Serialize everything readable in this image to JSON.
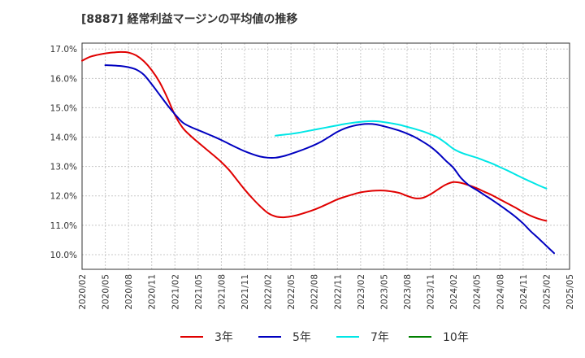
{
  "chart_data": {
    "type": "line",
    "title": "[8887]  経常利益マージンの平均値の推移",
    "xlabel": "",
    "ylabel": "",
    "ylim": [
      9.5,
      17.2
    ],
    "y_ticks": [
      "10.0%",
      "11.0%",
      "12.0%",
      "13.0%",
      "14.0%",
      "15.0%",
      "16.0%",
      "17.0%"
    ],
    "y_tick_values": [
      10,
      11,
      12,
      13,
      14,
      15,
      16,
      17
    ],
    "x_ticks": [
      "2020/02",
      "2020/05",
      "2020/08",
      "2020/11",
      "2021/02",
      "2021/05",
      "2021/08",
      "2021/11",
      "2022/02",
      "2022/05",
      "2022/08",
      "2022/11",
      "2023/02",
      "2023/05",
      "2023/08",
      "2023/11",
      "2024/02",
      "2024/05",
      "2024/08",
      "2024/11",
      "2025/02",
      "2025/05"
    ],
    "grid": true,
    "legend_position": "bottom",
    "series": [
      {
        "name": "3年",
        "color": "#e00000",
        "points": [
          [
            "2020/02",
            16.6
          ],
          [
            "2020/03",
            16.73
          ],
          [
            "2020/04",
            16.8
          ],
          [
            "2020/05",
            16.85
          ],
          [
            "2020/06",
            16.88
          ],
          [
            "2020/07",
            16.9
          ],
          [
            "2020/08",
            16.88
          ],
          [
            "2020/09",
            16.78
          ],
          [
            "2020/10",
            16.58
          ],
          [
            "2020/11",
            16.28
          ],
          [
            "2020/12",
            15.88
          ],
          [
            "2021/01",
            15.35
          ],
          [
            "2021/02",
            14.75
          ],
          [
            "2021/03",
            14.32
          ],
          [
            "2021/04",
            14.05
          ],
          [
            "2021/05",
            13.82
          ],
          [
            "2021/06",
            13.6
          ],
          [
            "2021/07",
            13.38
          ],
          [
            "2021/08",
            13.15
          ],
          [
            "2021/09",
            12.88
          ],
          [
            "2021/10",
            12.55
          ],
          [
            "2021/11",
            12.22
          ],
          [
            "2021/12",
            11.92
          ],
          [
            "2022/01",
            11.65
          ],
          [
            "2022/02",
            11.42
          ],
          [
            "2022/03",
            11.3
          ],
          [
            "2022/04",
            11.27
          ],
          [
            "2022/05",
            11.3
          ],
          [
            "2022/06",
            11.36
          ],
          [
            "2022/07",
            11.44
          ],
          [
            "2022/08",
            11.53
          ],
          [
            "2022/09",
            11.64
          ],
          [
            "2022/10",
            11.76
          ],
          [
            "2022/11",
            11.88
          ],
          [
            "2022/12",
            11.97
          ],
          [
            "2023/01",
            12.05
          ],
          [
            "2023/02",
            12.12
          ],
          [
            "2023/03",
            12.16
          ],
          [
            "2023/04",
            12.18
          ],
          [
            "2023/05",
            12.18
          ],
          [
            "2023/06",
            12.15
          ],
          [
            "2023/07",
            12.1
          ],
          [
            "2023/08",
            12.0
          ],
          [
            "2023/09",
            11.92
          ],
          [
            "2023/10",
            11.93
          ],
          [
            "2023/11",
            12.05
          ],
          [
            "2023/12",
            12.22
          ],
          [
            "2024/01",
            12.38
          ],
          [
            "2024/02",
            12.47
          ],
          [
            "2024/03",
            12.44
          ],
          [
            "2024/04",
            12.36
          ],
          [
            "2024/05",
            12.26
          ],
          [
            "2024/06",
            12.14
          ],
          [
            "2024/07",
            12.02
          ],
          [
            "2024/08",
            11.88
          ],
          [
            "2024/09",
            11.74
          ],
          [
            "2024/10",
            11.6
          ],
          [
            "2024/11",
            11.45
          ],
          [
            "2024/12",
            11.32
          ],
          [
            "2025/01",
            11.22
          ],
          [
            "2025/02",
            11.15
          ]
        ]
      },
      {
        "name": "5年",
        "color": "#0000c0",
        "points": [
          [
            "2020/05",
            16.45
          ],
          [
            "2020/06",
            16.44
          ],
          [
            "2020/07",
            16.42
          ],
          [
            "2020/08",
            16.38
          ],
          [
            "2020/09",
            16.3
          ],
          [
            "2020/10",
            16.12
          ],
          [
            "2020/11",
            15.8
          ],
          [
            "2020/12",
            15.45
          ],
          [
            "2021/01",
            15.1
          ],
          [
            "2021/02",
            14.78
          ],
          [
            "2021/03",
            14.5
          ],
          [
            "2021/04",
            14.35
          ],
          [
            "2021/05",
            14.24
          ],
          [
            "2021/06",
            14.13
          ],
          [
            "2021/07",
            14.02
          ],
          [
            "2021/08",
            13.9
          ],
          [
            "2021/09",
            13.77
          ],
          [
            "2021/10",
            13.64
          ],
          [
            "2021/11",
            13.52
          ],
          [
            "2021/12",
            13.42
          ],
          [
            "2022/01",
            13.34
          ],
          [
            "2022/02",
            13.3
          ],
          [
            "2022/03",
            13.3
          ],
          [
            "2022/04",
            13.35
          ],
          [
            "2022/05",
            13.43
          ],
          [
            "2022/06",
            13.52
          ],
          [
            "2022/07",
            13.62
          ],
          [
            "2022/08",
            13.73
          ],
          [
            "2022/09",
            13.86
          ],
          [
            "2022/10",
            14.02
          ],
          [
            "2022/11",
            14.18
          ],
          [
            "2022/12",
            14.3
          ],
          [
            "2023/01",
            14.38
          ],
          [
            "2023/02",
            14.43
          ],
          [
            "2023/03",
            14.45
          ],
          [
            "2023/04",
            14.43
          ],
          [
            "2023/05",
            14.37
          ],
          [
            "2023/06",
            14.3
          ],
          [
            "2023/07",
            14.22
          ],
          [
            "2023/08",
            14.12
          ],
          [
            "2023/09",
            14.0
          ],
          [
            "2023/10",
            13.85
          ],
          [
            "2023/11",
            13.68
          ],
          [
            "2023/12",
            13.46
          ],
          [
            "2024/01",
            13.2
          ],
          [
            "2024/02",
            12.95
          ],
          [
            "2024/03",
            12.6
          ],
          [
            "2024/04",
            12.36
          ],
          [
            "2024/05",
            12.2
          ],
          [
            "2024/06",
            12.03
          ],
          [
            "2024/07",
            11.86
          ],
          [
            "2024/08",
            11.68
          ],
          [
            "2024/09",
            11.49
          ],
          [
            "2024/10",
            11.29
          ],
          [
            "2024/11",
            11.06
          ],
          [
            "2024/12",
            10.79
          ],
          [
            "2025/01",
            10.55
          ],
          [
            "2025/02",
            10.3
          ],
          [
            "2025/03",
            10.05
          ]
        ]
      },
      {
        "name": "7年",
        "color": "#00e6e6",
        "points": [
          [
            "2022/03",
            14.05
          ],
          [
            "2022/04",
            14.08
          ],
          [
            "2022/05",
            14.11
          ],
          [
            "2022/06",
            14.15
          ],
          [
            "2022/07",
            14.2
          ],
          [
            "2022/08",
            14.25
          ],
          [
            "2022/09",
            14.3
          ],
          [
            "2022/10",
            14.35
          ],
          [
            "2022/11",
            14.4
          ],
          [
            "2022/12",
            14.45
          ],
          [
            "2023/01",
            14.49
          ],
          [
            "2023/02",
            14.52
          ],
          [
            "2023/03",
            14.54
          ],
          [
            "2023/04",
            14.54
          ],
          [
            "2023/05",
            14.51
          ],
          [
            "2023/06",
            14.47
          ],
          [
            "2023/07",
            14.42
          ],
          [
            "2023/08",
            14.35
          ],
          [
            "2023/09",
            14.28
          ],
          [
            "2023/10",
            14.2
          ],
          [
            "2023/11",
            14.1
          ],
          [
            "2023/12",
            13.98
          ],
          [
            "2024/01",
            13.8
          ],
          [
            "2024/02",
            13.6
          ],
          [
            "2024/03",
            13.47
          ],
          [
            "2024/04",
            13.38
          ],
          [
            "2024/05",
            13.3
          ],
          [
            "2024/06",
            13.2
          ],
          [
            "2024/07",
            13.1
          ],
          [
            "2024/08",
            12.98
          ],
          [
            "2024/09",
            12.86
          ],
          [
            "2024/10",
            12.73
          ],
          [
            "2024/11",
            12.6
          ],
          [
            "2024/12",
            12.48
          ],
          [
            "2025/01",
            12.36
          ],
          [
            "2025/02",
            12.25
          ]
        ]
      },
      {
        "name": "10年",
        "color": "#008000",
        "points": []
      }
    ]
  }
}
